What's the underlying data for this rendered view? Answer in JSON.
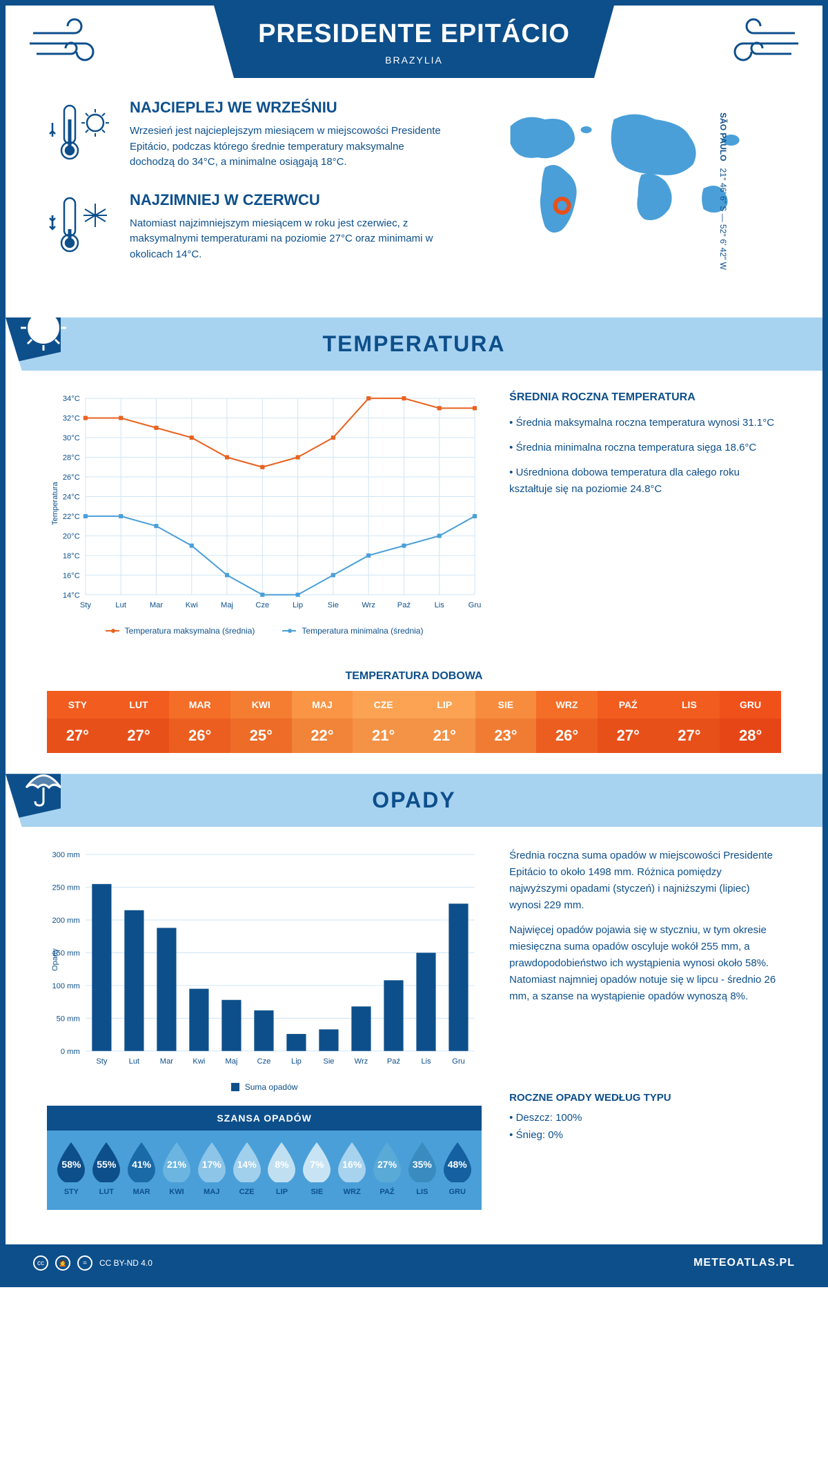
{
  "header": {
    "title": "PRESIDENTE EPITÁCIO",
    "country": "BRAZYLIA"
  },
  "coords": {
    "lat": "21° 46' 6\" S",
    "lon": "52° 6' 42\" W",
    "region": "SÃO PAULO"
  },
  "hottest": {
    "title": "NAJCIEPLEJ WE WRZEŚNIU",
    "text": "Wrzesień jest najcieplejszym miesiącem w miejscowości Presidente Epitácio, podczas którego średnie temperatury maksymalne dochodzą do 34°C, a minimalne osiągają 18°C."
  },
  "coldest": {
    "title": "NAJZIMNIEJ W CZERWCU",
    "text": "Natomiast najzimniejszym miesiącem w roku jest czerwiec, z maksymalnymi temperaturami na poziomie 27°C oraz minimami w okolicach 14°C."
  },
  "temp_section_title": "TEMPERATURA",
  "temp_chart": {
    "months": [
      "Sty",
      "Lut",
      "Mar",
      "Kwi",
      "Maj",
      "Cze",
      "Lip",
      "Sie",
      "Wrz",
      "Paź",
      "Lis",
      "Gru"
    ],
    "ylabel": "Temperatura",
    "ytick_min": 14,
    "ytick_max": 34,
    "ytick_step": 2,
    "ytick_suffix": "°C",
    "max_series": [
      32,
      32,
      31,
      30,
      28,
      27,
      28,
      30,
      34,
      34,
      33,
      33
    ],
    "min_series": [
      22,
      22,
      21,
      19,
      16,
      14,
      14,
      16,
      18,
      19,
      20,
      22
    ],
    "max_color": "#e8621f",
    "min_color": "#4a9fd8",
    "grid_color": "#d0e5f5",
    "legend_max": "Temperatura maksymalna (średnia)",
    "legend_min": "Temperatura minimalna (średnia)"
  },
  "avg_temp": {
    "title": "ŚREDNIA ROCZNA TEMPERATURA",
    "b1": "• Średnia maksymalna roczna temperatura wynosi 31.1°C",
    "b2": "• Średnia minimalna roczna temperatura sięga 18.6°C",
    "b3": "• Uśredniona dobowa temperatura dla całego roku kształtuje się na poziomie 24.8°C"
  },
  "daily_title": "TEMPERATURA DOBOWA",
  "daily": {
    "months": [
      "STY",
      "LUT",
      "MAR",
      "KWI",
      "MAJ",
      "CZE",
      "LIP",
      "SIE",
      "WRZ",
      "PAŹ",
      "LIS",
      "GRU"
    ],
    "values": [
      "27°",
      "27°",
      "26°",
      "25°",
      "22°",
      "21°",
      "21°",
      "23°",
      "26°",
      "27°",
      "27°",
      "28°"
    ],
    "th_colors": [
      "#f25c1e",
      "#f25c1e",
      "#f46e28",
      "#f57d32",
      "#f99544",
      "#fba352",
      "#fba352",
      "#f88c3e",
      "#f46e28",
      "#f25c1e",
      "#f25c1e",
      "#f0511a"
    ],
    "td_colors": [
      "#e8501a",
      "#e8501a",
      "#eb5e20",
      "#ed6c28",
      "#f18438",
      "#f49246",
      "#f49246",
      "#f07c34",
      "#eb5e20",
      "#e8501a",
      "#e8501a",
      "#e64616"
    ]
  },
  "rain_section_title": "OPADY",
  "rain_chart": {
    "months": [
      "Sty",
      "Lut",
      "Mar",
      "Kwi",
      "Maj",
      "Cze",
      "Lip",
      "Sie",
      "Wrz",
      "Paź",
      "Lis",
      "Gru"
    ],
    "ylabel": "Opady",
    "ytick_max": 300,
    "ytick_step": 50,
    "ytick_suffix": " mm",
    "values": [
      255,
      215,
      188,
      95,
      78,
      62,
      26,
      33,
      68,
      108,
      150,
      225
    ],
    "bar_color": "#0d4f8b",
    "grid_color": "#d0e5f5",
    "legend": "Suma opadów"
  },
  "rain_text": {
    "p1": "Średnia roczna suma opadów w miejscowości Presidente Epitácio to około 1498 mm. Różnica pomiędzy najwyższymi opadami (styczeń) i najniższymi (lipiec) wynosi 229 mm.",
    "p2": "Najwięcej opadów pojawia się w styczniu, w tym okresie miesięczna suma opadów oscyluje wokół 255 mm, a prawdopodobieństwo ich wystąpienia wynosi około 58%. Natomiast najmniej opadów notuje się w lipcu - średnio 26 mm, a szanse na wystąpienie opadów wynoszą 8%."
  },
  "chance": {
    "title": "SZANSA OPADÓW",
    "months": [
      "STY",
      "LUT",
      "MAR",
      "KWI",
      "MAJ",
      "CZE",
      "LIP",
      "SIE",
      "WRZ",
      "PAŹ",
      "LIS",
      "GRU"
    ],
    "values": [
      "58%",
      "55%",
      "41%",
      "21%",
      "17%",
      "14%",
      "8%",
      "7%",
      "16%",
      "27%",
      "35%",
      "48%"
    ],
    "colors": [
      "#0d4f8b",
      "#0d4f8b",
      "#1a6aa8",
      "#6bb5e0",
      "#8cc5e8",
      "#a0d0ec",
      "#c0e0f2",
      "#c8e4f4",
      "#a8d3ee",
      "#5aaad8",
      "#3a8cc0",
      "#1560a0"
    ]
  },
  "rain_types": {
    "title": "ROCZNE OPADY WEDŁUG TYPU",
    "rain": "• Deszcz: 100%",
    "snow": "• Śnieg: 0%"
  },
  "footer": {
    "license": "CC BY-ND 4.0",
    "site": "METEOATLAS.PL"
  }
}
